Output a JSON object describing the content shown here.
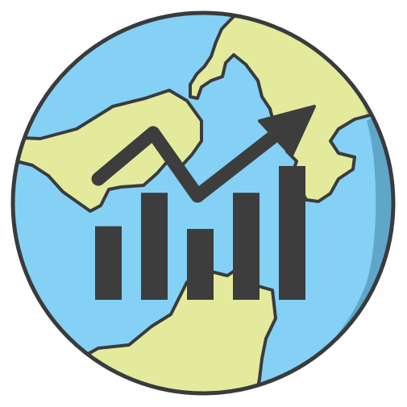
{
  "icon": {
    "name": "globe-growth-chart-icon",
    "colors": {
      "ocean": "#84D1F5",
      "ocean_shadow": "#5FA6C9",
      "land": "#E4EA9C",
      "land_shadow": "#BDC57E",
      "outline": "#3A3B3D",
      "chart": "#3D3D3D"
    },
    "chart_bars": [
      0.55,
      0.8,
      0.53,
      0.8,
      1.0
    ],
    "trend_direction": "up"
  }
}
